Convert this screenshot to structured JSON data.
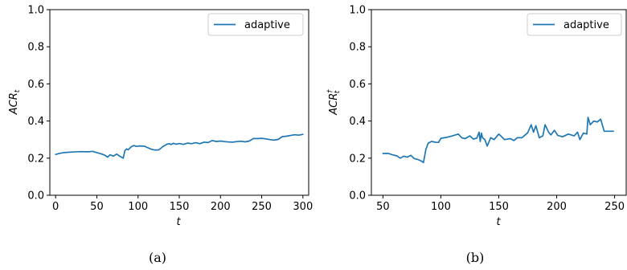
{
  "chart_data": [
    {
      "type": "line",
      "panel": "(a)",
      "ylabel": "ACR",
      "ylabel_sub": "t",
      "ylabel_sup": "",
      "xlabel": "t",
      "xlim": [
        -7,
        307
      ],
      "ylim": [
        0.0,
        1.0
      ],
      "xticks": [
        0,
        50,
        100,
        150,
        200,
        250,
        300
      ],
      "yticks": [
        0.0,
        0.2,
        0.4,
        0.6,
        0.8,
        1.0
      ],
      "xtick_labels": [
        "0",
        "50",
        "100",
        "150",
        "200",
        "250",
        "300"
      ],
      "ytick_labels": [
        "0.0",
        "0.2",
        "0.4",
        "0.6",
        "0.8",
        "1.0"
      ],
      "grid": false,
      "legend": {
        "placement": "top-right",
        "entries": [
          "adaptive"
        ]
      },
      "series": [
        {
          "name": "adaptive",
          "color": "#1f77b4",
          "x": [
            0,
            5,
            10,
            20,
            30,
            40,
            45,
            50,
            55,
            60,
            63,
            66,
            70,
            74,
            78,
            82,
            84,
            86,
            88,
            92,
            95,
            98,
            102,
            108,
            112,
            116,
            120,
            125,
            130,
            135,
            138,
            140,
            143,
            146,
            150,
            155,
            160,
            165,
            170,
            175,
            180,
            185,
            190,
            195,
            200,
            205,
            210,
            215,
            220,
            225,
            230,
            235,
            240,
            245,
            250,
            255,
            260,
            265,
            270,
            275,
            280,
            285,
            290,
            295,
            300
          ],
          "y": [
            0.22,
            0.226,
            0.23,
            0.233,
            0.235,
            0.234,
            0.237,
            0.23,
            0.224,
            0.215,
            0.205,
            0.218,
            0.211,
            0.222,
            0.21,
            0.2,
            0.24,
            0.25,
            0.245,
            0.262,
            0.268,
            0.263,
            0.266,
            0.264,
            0.256,
            0.248,
            0.244,
            0.244,
            0.262,
            0.275,
            0.278,
            0.273,
            0.28,
            0.275,
            0.279,
            0.274,
            0.281,
            0.278,
            0.283,
            0.278,
            0.286,
            0.284,
            0.295,
            0.29,
            0.292,
            0.289,
            0.287,
            0.286,
            0.289,
            0.291,
            0.288,
            0.292,
            0.306,
            0.305,
            0.307,
            0.304,
            0.3,
            0.297,
            0.301,
            0.316,
            0.318,
            0.322,
            0.326,
            0.324,
            0.328
          ]
        }
      ]
    },
    {
      "type": "line",
      "panel": "(b)",
      "ylabel": "ACR",
      "ylabel_sub": "t",
      "ylabel_sup": "†",
      "xlabel": "t",
      "xlim": [
        40,
        260
      ],
      "ylim": [
        0.0,
        1.0
      ],
      "xticks": [
        50,
        100,
        150,
        200,
        250
      ],
      "yticks": [
        0.0,
        0.2,
        0.4,
        0.6,
        0.8,
        1.0
      ],
      "xtick_labels": [
        "50",
        "100",
        "150",
        "200",
        "250"
      ],
      "ytick_labels": [
        "0.0",
        "0.2",
        "0.4",
        "0.6",
        "0.8",
        "1.0"
      ],
      "grid": false,
      "legend": {
        "placement": "top-right",
        "entries": [
          "adaptive"
        ]
      },
      "series": [
        {
          "name": "adaptive",
          "color": "#1f77b4",
          "x": [
            50,
            55,
            58,
            62,
            65,
            68,
            71,
            74,
            77,
            80,
            83,
            85,
            87,
            89,
            92,
            96,
            98,
            100,
            105,
            110,
            115,
            118,
            121,
            125,
            128,
            131,
            133,
            134,
            135,
            136,
            138,
            140,
            143,
            146,
            150,
            155,
            160,
            163,
            166,
            170,
            175,
            178,
            180,
            182,
            185,
            188,
            190,
            193,
            195,
            198,
            201,
            205,
            210,
            215,
            218,
            220,
            223,
            226,
            227,
            229,
            232,
            235,
            238,
            241,
            243,
            246,
            249
          ],
          "y": [
            0.225,
            0.225,
            0.218,
            0.212,
            0.2,
            0.211,
            0.205,
            0.215,
            0.198,
            0.193,
            0.185,
            0.176,
            0.245,
            0.28,
            0.29,
            0.285,
            0.285,
            0.307,
            0.312,
            0.32,
            0.33,
            0.31,
            0.305,
            0.32,
            0.303,
            0.308,
            0.34,
            0.29,
            0.335,
            0.31,
            0.3,
            0.265,
            0.31,
            0.3,
            0.33,
            0.3,
            0.305,
            0.295,
            0.31,
            0.31,
            0.337,
            0.38,
            0.34,
            0.375,
            0.31,
            0.32,
            0.38,
            0.34,
            0.325,
            0.35,
            0.322,
            0.315,
            0.33,
            0.32,
            0.34,
            0.3,
            0.335,
            0.33,
            0.42,
            0.38,
            0.4,
            0.395,
            0.41,
            0.345,
            0.345,
            0.345,
            0.345
          ]
        }
      ]
    }
  ]
}
